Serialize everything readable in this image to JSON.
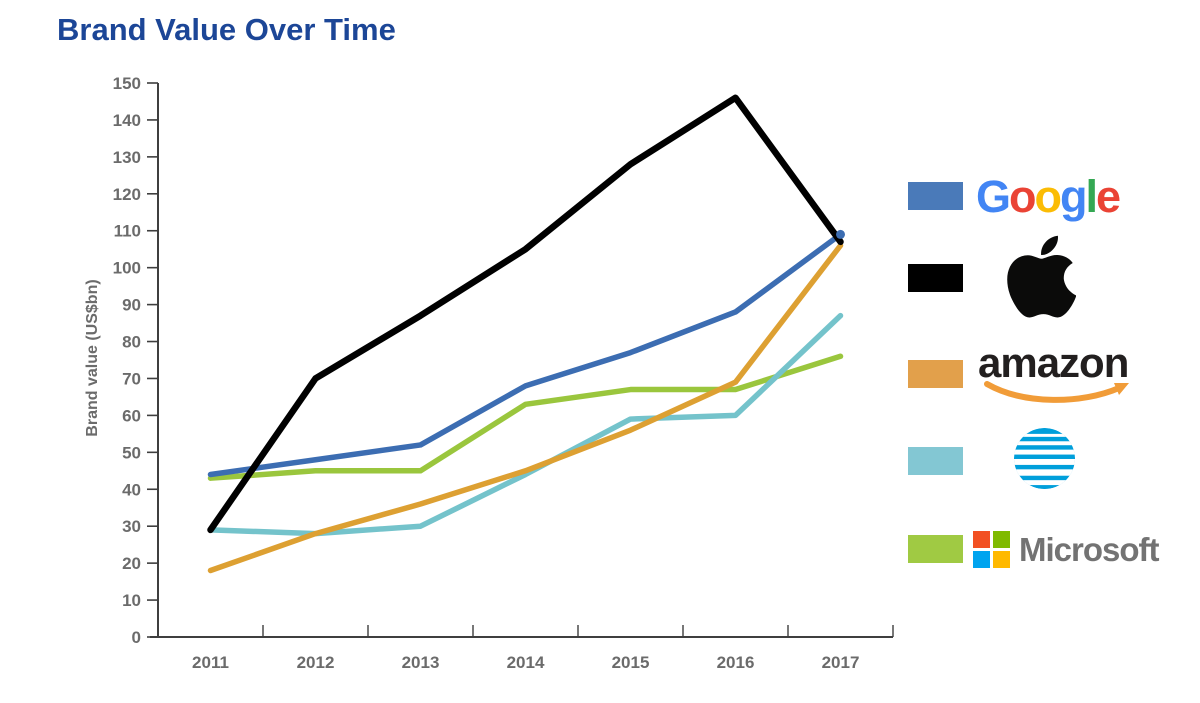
{
  "title": {
    "text": "Brand Value Over Time",
    "color": "#1c4697"
  },
  "chart_data": {
    "type": "line",
    "title": "Brand Value Over Time",
    "x": [
      "2011",
      "2012",
      "2013",
      "2014",
      "2015",
      "2016",
      "2017"
    ],
    "series": [
      {
        "name": "Google",
        "color": "#3c6db2",
        "width": 5.5,
        "z": 4,
        "end_dot": true,
        "values": [
          44,
          48,
          52,
          68,
          77,
          88,
          109
        ]
      },
      {
        "name": "Apple",
        "color": "#000000",
        "width": 6.5,
        "z": 5,
        "end_dot": false,
        "values": [
          29,
          70,
          87,
          105,
          128,
          146,
          107
        ]
      },
      {
        "name": "Amazon",
        "color": "#dda032",
        "width": 5.5,
        "z": 3,
        "end_dot": false,
        "values": [
          18,
          28,
          36,
          45,
          56,
          69,
          106
        ]
      },
      {
        "name": "AT&T",
        "color": "#74c3cb",
        "width": 5.5,
        "z": 2,
        "end_dot": false,
        "values": [
          29,
          28,
          30,
          44,
          59,
          60,
          87
        ]
      },
      {
        "name": "Microsoft",
        "color": "#9ac63d",
        "width": 5.5,
        "z": 1,
        "end_dot": false,
        "values": [
          43,
          45,
          45,
          63,
          67,
          67,
          76
        ]
      }
    ],
    "xlabel": "",
    "ylabel": "Brand value (US$bn)",
    "ylim": [
      0,
      150
    ],
    "ytick_step": 10,
    "grid": false,
    "legend_position": "right",
    "axis_color": "#3f3f3f",
    "tick_label_color": "#6b6b6b"
  },
  "legend": {
    "items": [
      {
        "name": "Google",
        "swatch": "#4a7ab9"
      },
      {
        "name": "Apple",
        "swatch": "#000000"
      },
      {
        "name": "amazon",
        "swatch": "#e2a04b"
      },
      {
        "name": "AT&T",
        "swatch": "#83c7d3"
      },
      {
        "name": "Microsoft",
        "swatch": "#a0ca43"
      }
    ],
    "google_letters": [
      {
        "ch": "G",
        "color": "#4285F4"
      },
      {
        "ch": "o",
        "color": "#EA4335"
      },
      {
        "ch": "o",
        "color": "#FBBC05"
      },
      {
        "ch": "g",
        "color": "#4285F4"
      },
      {
        "ch": "l",
        "color": "#34A853"
      },
      {
        "ch": "e",
        "color": "#EA4335"
      }
    ],
    "amazon_text": "amazon",
    "amazon_text_color": "#221f1f",
    "amazon_smile_color": "#f19c38",
    "att_color": "#009FDB",
    "apple_color": "#0b0b0a",
    "microsoft_text": "Microsoft",
    "microsoft_text_color": "#737373",
    "microsoft_squares": [
      "#F25022",
      "#7FBA00",
      "#00A4EF",
      "#FFB900"
    ]
  }
}
